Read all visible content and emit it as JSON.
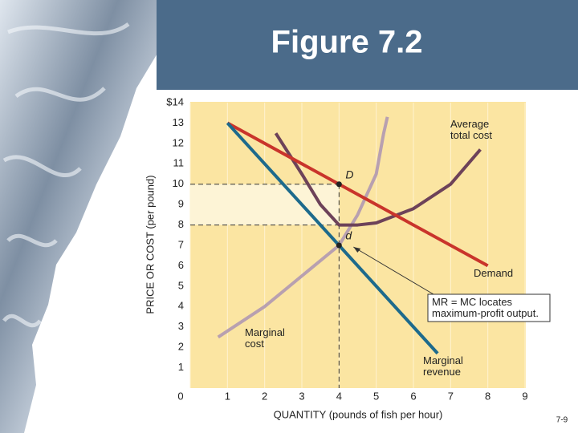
{
  "chart_data": {
    "type": "line",
    "title": "Figure 7.2",
    "x_label": "QUANTITY (pounds of fish per hour)",
    "y_label": "PRICE OR COST (per pound)",
    "page_number": "7-9",
    "xlim": [
      0,
      9
    ],
    "ylim": [
      0,
      14
    ],
    "xticks": [
      0,
      1,
      2,
      3,
      4,
      5,
      6,
      7,
      8,
      9
    ],
    "yticks": [
      1,
      2,
      3,
      4,
      5,
      6,
      7,
      8,
      9,
      10,
      11,
      12,
      13,
      {
        "value": 14,
        "label": "$14"
      }
    ],
    "grid": true,
    "series": [
      {
        "name": "Demand",
        "color": "#c9342b",
        "x": [
          1,
          8
        ],
        "values": [
          13,
          6
        ]
      },
      {
        "name": "Marginal revenue",
        "color": "#1d6a8c",
        "x": [
          1,
          6.65
        ],
        "values": [
          13,
          1.7
        ]
      },
      {
        "name": "Marginal cost",
        "color": "#b8a0b0",
        "x": [
          0.75,
          2,
          3,
          4,
          4.5,
          5,
          5.2,
          5.3
        ],
        "values": [
          2.5,
          4,
          5.5,
          7,
          8.5,
          10.5,
          12.5,
          13.3
        ]
      },
      {
        "name": "Average total cost",
        "color": "#6d4259",
        "x": [
          2.3,
          3,
          3.5,
          4,
          4.5,
          5,
          6,
          7,
          7.8
        ],
        "values": [
          12.5,
          10.5,
          9,
          8,
          8,
          8.1,
          8.8,
          10,
          11.7
        ]
      }
    ],
    "points": [
      {
        "label": "D",
        "x": 4,
        "y": 10
      },
      {
        "label": "d",
        "x": 4,
        "y": 7
      }
    ],
    "annotation": "MR = MC locates maximum-profit output."
  }
}
